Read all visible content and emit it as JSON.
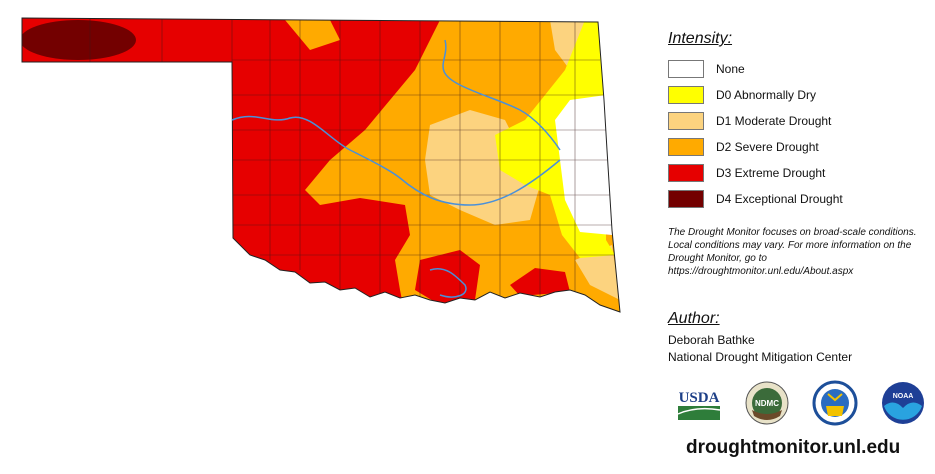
{
  "legend": {
    "title": "Intensity:",
    "items": [
      {
        "label": "None",
        "color": "#ffffff"
      },
      {
        "label": "D0 Abnormally Dry",
        "color": "#ffff00"
      },
      {
        "label": "D1 Moderate Drought",
        "color": "#fcd37f"
      },
      {
        "label": "D2 Severe Drought",
        "color": "#ffaa00"
      },
      {
        "label": "D3 Extreme Drought",
        "color": "#e60000"
      },
      {
        "label": "D4 Exceptional Drought",
        "color": "#730000"
      }
    ],
    "note": "The Drought Monitor focuses on broad-scale conditions. Local conditions may vary. For more information on the Drought Monitor, go to https://droughtmonitor.unl.edu/About.aspx"
  },
  "author": {
    "title": "Author:",
    "name": "Deborah Bathke",
    "org": "National Drought Mitigation Center"
  },
  "logos": {
    "usda": "USDA",
    "ndmc": "NDMC",
    "doc": "Department of Commerce",
    "noaa": "NOAA"
  },
  "site": "droughtmonitor.unl.edu",
  "map": {
    "region": "Oklahoma",
    "river_color": "#4a90d9"
  }
}
